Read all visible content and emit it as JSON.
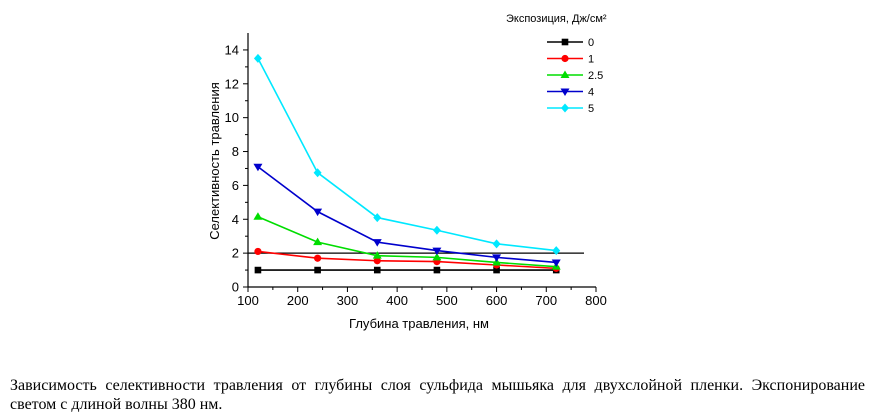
{
  "chart_data": {
    "type": "line",
    "xlabel": "Глубина травления, нм",
    "ylabel": "Селективность травления",
    "xlim": [
      100,
      800
    ],
    "ylim": [
      0,
      15
    ],
    "xticks": [
      100,
      200,
      300,
      400,
      500,
      600,
      700,
      800
    ],
    "yticks": [
      0,
      2,
      4,
      6,
      8,
      10,
      12,
      14
    ],
    "grid": false,
    "legend_title": "Экспозиция, Дж/см²",
    "legend_position": "top-right",
    "x": [
      120,
      240,
      360,
      480,
      600,
      720
    ],
    "series": [
      {
        "name": "0",
        "color": "#000000",
        "marker": "square",
        "values": [
          1.0,
          1.0,
          1.0,
          1.0,
          1.0,
          1.0
        ]
      },
      {
        "name": "1",
        "color": "#ff0000",
        "marker": "circle",
        "values": [
          2.1,
          1.7,
          1.55,
          1.5,
          1.3,
          1.1
        ]
      },
      {
        "name": "2.5",
        "color": "#00dd00",
        "marker": "triangle-up",
        "values": [
          4.15,
          2.65,
          1.85,
          1.75,
          1.45,
          1.2
        ]
      },
      {
        "name": "4",
        "color": "#0000cc",
        "marker": "triangle-down",
        "values": [
          7.1,
          4.45,
          2.65,
          2.15,
          1.75,
          1.45
        ]
      },
      {
        "name": "5",
        "color": "#00e8ff",
        "marker": "diamond",
        "values": [
          13.5,
          6.75,
          4.1,
          3.35,
          2.55,
          2.15
        ]
      }
    ],
    "reference_line": {
      "y": 2.0,
      "color": "#000000"
    }
  },
  "caption": "Зависимость селективности травления от глубины слоя сульфида мышьяка для двухслойной пленки. Экспонирование светом с длиной волны 380 нм."
}
